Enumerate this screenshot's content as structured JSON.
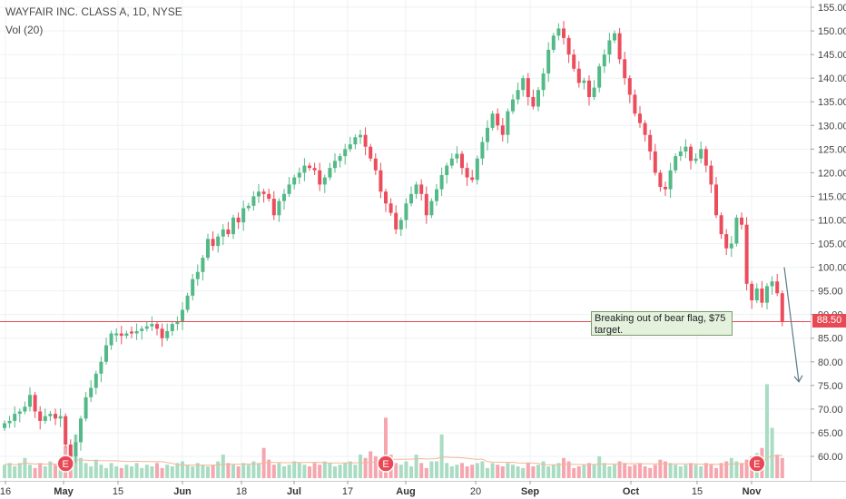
{
  "header": {
    "title": "WAYFAIR INC. CLASS A, 1D, NYSE",
    "volume_label": "Vol (20)"
  },
  "annotation": {
    "text": "Breaking out of bear flag, $75 target."
  },
  "current_price": "88.50",
  "colors": {
    "up": "#53b987",
    "down": "#eb4d5c",
    "up_vol": "#a9dcc3",
    "down_vol": "#f5a6ae",
    "ma": "#f2b79a",
    "price_line": "#e84a55",
    "arrow": "#5b7a87",
    "grid": "#eef0f3"
  },
  "earnings_marker": "E",
  "chart_data": {
    "type": "candlestick",
    "ylim": [
      56,
      156
    ],
    "y_ticks": [
      "155.00",
      "150.00",
      "145.00",
      "140.00",
      "135.00",
      "130.00",
      "125.00",
      "120.00",
      "115.00",
      "110.00",
      "105.00",
      "100.00",
      "95.00",
      "90.00",
      "85.00",
      "80.00",
      "75.00",
      "70.00",
      "65.00",
      "60.00"
    ],
    "x_ticks": [
      "16",
      "May",
      "15",
      "Jun",
      "18",
      "Jul",
      "17",
      "Aug",
      "20",
      "Sep",
      "Oct",
      "15",
      "Nov"
    ],
    "price_line_value": 88.5,
    "target_value": 75,
    "series": [
      {
        "name": "price",
        "closes": [
          67.0,
          67.5,
          69.0,
          69.5,
          70.5,
          73.0,
          69.5,
          67.5,
          68.5,
          69.0,
          68.0,
          68.5,
          62.5,
          60.0,
          63.0,
          68.0,
          72.5,
          74.5,
          77.5,
          80.0,
          83.5,
          86.0,
          86.0,
          85.5,
          86.0,
          86.0,
          86.5,
          87.0,
          87.5,
          88.0,
          87.0,
          85.0,
          86.5,
          88.0,
          88.5,
          91.0,
          94.0,
          97.5,
          99.0,
          102.0,
          106.0,
          104.5,
          106.5,
          108.0,
          107.0,
          110.5,
          109.5,
          112.5,
          113.0,
          115.0,
          116.0,
          115.5,
          114.5,
          111.0,
          114.0,
          115.5,
          117.5,
          119.0,
          120.0,
          121.5,
          121.0,
          120.5,
          117.5,
          119.0,
          121.0,
          122.5,
          123.5,
          125.0,
          126.0,
          127.5,
          128.0,
          125.5,
          123.0,
          120.5,
          116.0,
          113.5,
          111.5,
          108.0,
          110.0,
          113.5,
          115.5,
          117.5,
          115.5,
          111.0,
          114.0,
          116.5,
          119.5,
          121.5,
          123.0,
          124.0,
          121.0,
          119.0,
          118.5,
          123.0,
          126.5,
          129.5,
          132.5,
          130.0,
          128.0,
          133.0,
          135.5,
          137.5,
          140.0,
          136.0,
          134.0,
          137.5,
          141.0,
          146.0,
          149.0,
          150.5,
          148.5,
          145.0,
          142.0,
          139.0,
          139.5,
          136.0,
          138.0,
          142.5,
          145.0,
          148.0,
          149.5,
          144.0,
          140.0,
          136.5,
          132.5,
          130.5,
          128.0,
          124.5,
          120.0,
          117.0,
          116.5,
          120.5,
          123.5,
          124.5,
          125.5,
          122.5,
          123.0,
          125.0,
          121.5,
          117.5,
          111.0,
          107.0,
          104.0,
          105.0,
          110.5,
          109.0,
          96.5,
          93.0,
          95.5,
          92.5,
          96.0,
          97.0,
          94.5,
          88.5
        ]
      },
      {
        "name": "volume",
        "values": [
          0.8,
          0.9,
          0.7,
          0.9,
          1.2,
          0.8,
          0.6,
          0.9,
          0.7,
          1.0,
          0.8,
          0.7,
          1.9,
          1.6,
          2.6,
          1.2,
          0.9,
          0.7,
          1.1,
          0.8,
          0.6,
          0.9,
          0.7,
          0.6,
          0.8,
          0.7,
          0.9,
          0.6,
          0.8,
          0.7,
          0.9,
          0.6,
          0.8,
          0.7,
          0.9,
          1.0,
          0.8,
          0.7,
          0.9,
          0.8,
          0.7,
          0.8,
          1.0,
          1.4,
          0.9,
          0.8,
          0.7,
          0.9,
          0.8,
          1.0,
          0.9,
          1.8,
          1.1,
          0.8,
          0.9,
          0.7,
          0.8,
          1.0,
          0.9,
          0.8,
          0.7,
          0.9,
          0.8,
          1.0,
          0.9,
          0.7,
          0.8,
          0.9,
          1.0,
          0.8,
          1.4,
          1.2,
          1.6,
          1.3,
          0.9,
          3.6,
          1.4,
          0.9,
          0.8,
          1.0,
          0.7,
          1.4,
          0.9,
          0.6,
          1.0,
          1.0,
          2.6,
          0.9,
          0.7,
          0.8,
          0.9,
          0.7,
          0.8,
          0.9,
          1.0,
          0.6,
          0.9,
          0.8,
          0.7,
          0.9,
          0.8,
          0.7,
          0.6,
          0.9,
          0.7,
          0.8,
          1.0,
          0.7,
          0.8,
          0.9,
          1.2,
          1.0,
          0.6,
          0.7,
          0.8,
          0.9,
          0.8,
          1.3,
          0.9,
          0.7,
          0.8,
          1.0,
          0.9,
          0.7,
          0.8,
          0.9,
          0.7,
          0.6,
          0.8,
          1.1,
          1.0,
          0.9,
          0.8,
          0.7,
          0.8,
          0.9,
          0.8,
          0.7,
          0.9,
          0.8,
          0.6,
          0.9,
          1.0,
          1.2,
          1.0,
          0.9,
          1.1,
          1.3,
          1.5,
          1.8,
          5.6,
          3.0,
          1.4,
          1.2,
          0.9,
          0.7,
          0.8,
          0.5
        ]
      }
    ],
    "earnings_at_index": [
      12,
      75,
      148
    ]
  }
}
